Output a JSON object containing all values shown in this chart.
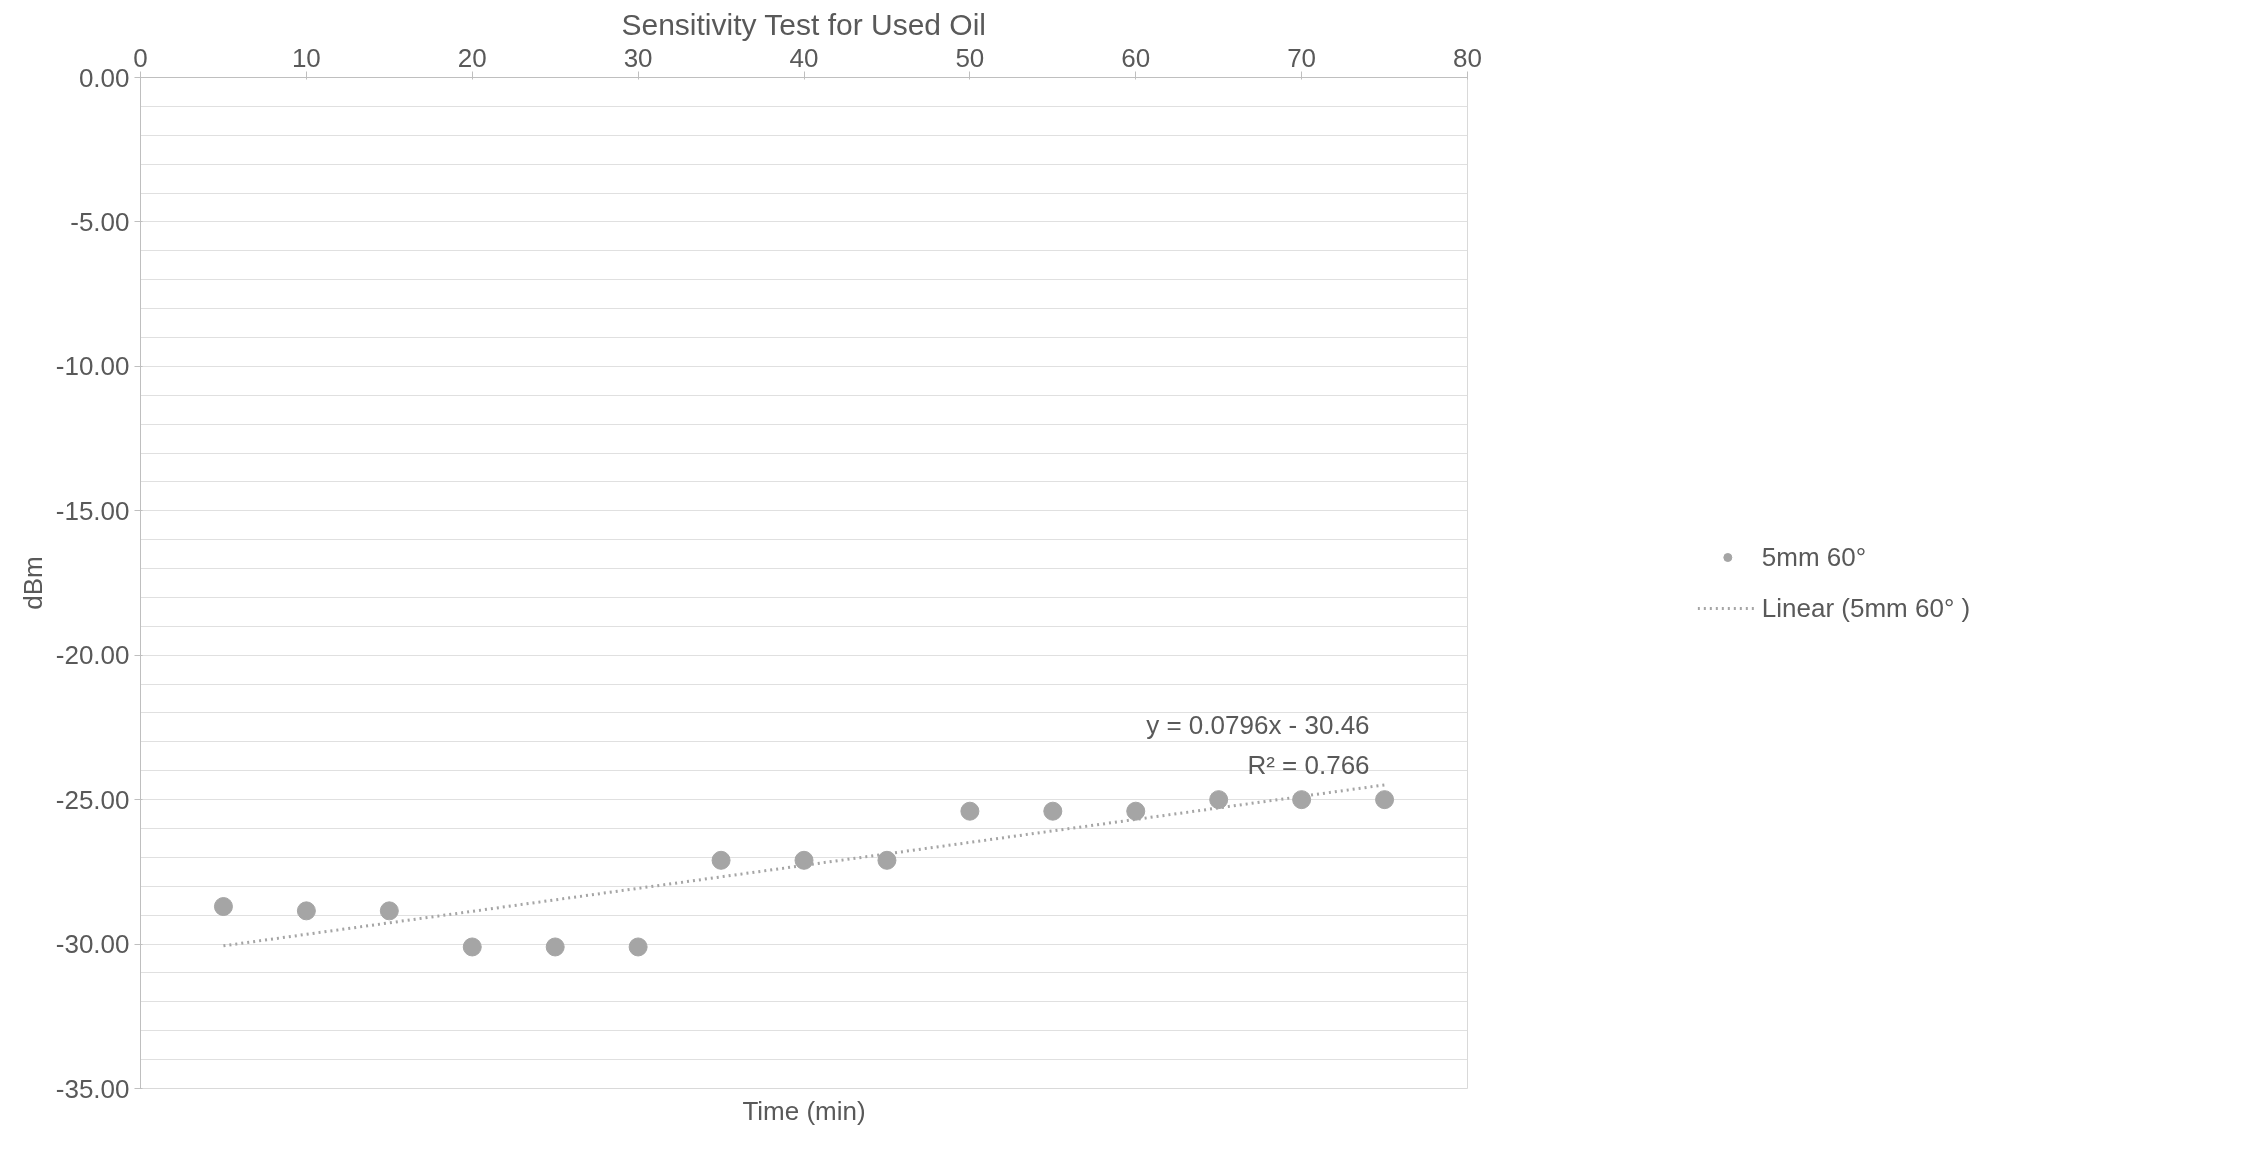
{
  "chart_data": {
    "type": "scatter",
    "title": "Sensitivity Test for Used Oil",
    "xlabel": "Time (min)",
    "ylabel": "dBm",
    "x": [
      5,
      10,
      15,
      20,
      25,
      30,
      35,
      40,
      45,
      50,
      55,
      60,
      65,
      70,
      75
    ],
    "series": [
      {
        "name": "5mm 60°",
        "color": "#a5a5a5",
        "marker": "circle",
        "values": [
          -28.7,
          -28.85,
          -28.85,
          -30.1,
          -30.1,
          -30.1,
          -27.1,
          -27.1,
          -27.1,
          -25.4,
          -25.4,
          -25.4,
          -25.0,
          -25.0,
          -25.0
        ]
      },
      {
        "name": "Linear (5mm 60° )",
        "type": "line",
        "color": "#a5a5a5",
        "line_style": "dotted",
        "x": [
          5,
          75
        ],
        "values": [
          -30.06,
          -24.49
        ]
      }
    ],
    "annotations": [
      "y = 0.0796x - 30.46",
      "R² = 0.766"
    ],
    "xlim": [
      0,
      80
    ],
    "xticks": [
      0,
      10,
      20,
      30,
      40,
      50,
      60,
      70,
      80
    ],
    "ylim": [
      -35,
      0
    ],
    "yticks": [
      {
        "value": 0,
        "label": "0.00"
      },
      {
        "value": -5,
        "label": "-5.00"
      },
      {
        "value": -10,
        "label": "-10.00"
      },
      {
        "value": -15,
        "label": "-15.00"
      },
      {
        "value": -20,
        "label": "-20.00"
      },
      {
        "value": -25,
        "label": "-25.00"
      },
      {
        "value": -30,
        "label": "-30.00"
      },
      {
        "value": -35,
        "label": "-35.00"
      },
      {
        "value": -1,
        "label": null
      },
      {
        "value": -2,
        "label": null
      },
      {
        "value": -3,
        "label": null
      },
      {
        "value": -4,
        "label": null
      },
      {
        "value": -6,
        "label": null
      },
      {
        "value": -7,
        "label": null
      },
      {
        "value": -8,
        "label": null
      },
      {
        "value": -9,
        "label": null
      },
      {
        "value": -11,
        "label": null
      },
      {
        "value": -12,
        "label": null
      },
      {
        "value": -13,
        "label": null
      },
      {
        "value": -14,
        "label": null
      },
      {
        "value": -16,
        "label": null
      },
      {
        "value": -17,
        "label": null
      },
      {
        "value": -18,
        "label": null
      },
      {
        "value": -19,
        "label": null
      },
      {
        "value": -21,
        "label": null
      },
      {
        "value": -22,
        "label": null
      },
      {
        "value": -23,
        "label": null
      },
      {
        "value": -24,
        "label": null
      },
      {
        "value": -26,
        "label": null
      },
      {
        "value": -27,
        "label": null
      },
      {
        "value": -28,
        "label": null
      },
      {
        "value": -29,
        "label": null
      },
      {
        "value": -31,
        "label": null
      },
      {
        "value": -32,
        "label": null
      },
      {
        "value": -33,
        "label": null
      },
      {
        "value": -34,
        "label": null
      }
    ],
    "grid": "y",
    "legend": "right"
  }
}
